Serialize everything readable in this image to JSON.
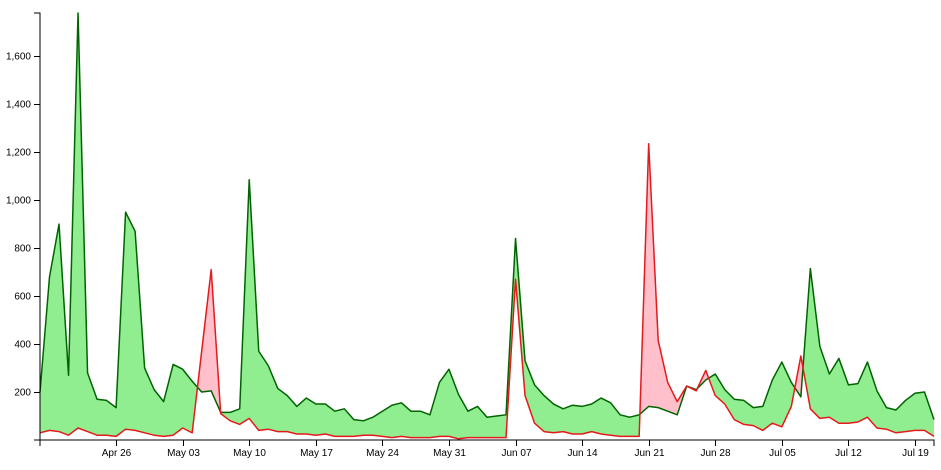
{
  "chart_data": {
    "type": "area",
    "x_start": "2015-04-18",
    "x_interval": "day",
    "ylim": [
      0,
      1780
    ],
    "y_ticks": [
      200,
      400,
      600,
      800,
      1000,
      1200,
      1400,
      1600
    ],
    "y_tick_labels": [
      "200",
      "400",
      "600",
      "800",
      "1,000",
      "1,200",
      "1,400",
      "1,600"
    ],
    "x_tick_labels": [
      "Apr 26",
      "May 03",
      "May 10",
      "May 17",
      "May 24",
      "May 31",
      "Jun 07",
      "Jun 14",
      "Jun 21",
      "Jun 28",
      "Jul 05",
      "Jul 12",
      "Jul 19"
    ],
    "fill_when_green_higher": "#90ee90",
    "fill_when_red_higher": "#ffc0cb",
    "series": [
      {
        "color": "#006400",
        "values": [
          200,
          680,
          900,
          270,
          1780,
          280,
          170,
          165,
          135,
          950,
          870,
          300,
          210,
          160,
          315,
          295,
          245,
          200,
          205,
          115,
          115,
          130,
          1085,
          370,
          310,
          215,
          185,
          140,
          175,
          150,
          150,
          120,
          130,
          85,
          80,
          95,
          120,
          145,
          155,
          120,
          120,
          105,
          240,
          295,
          190,
          120,
          140,
          95,
          100,
          105,
          840,
          330,
          230,
          185,
          150,
          130,
          145,
          140,
          150,
          175,
          155,
          105,
          95,
          105,
          140,
          135,
          120,
          105,
          225,
          210,
          250,
          275,
          210,
          170,
          165,
          135,
          140,
          250,
          325,
          240,
          180,
          715,
          390,
          275,
          340,
          230,
          235,
          325,
          205,
          135,
          125,
          165,
          195,
          200,
          85
        ]
      },
      {
        "color": "#e41a1c",
        "values": [
          30,
          40,
          35,
          20,
          50,
          35,
          20,
          20,
          15,
          45,
          40,
          30,
          20,
          15,
          20,
          50,
          30,
          370,
          710,
          110,
          80,
          65,
          90,
          40,
          45,
          35,
          35,
          25,
          25,
          20,
          25,
          15,
          15,
          15,
          20,
          20,
          15,
          10,
          15,
          10,
          10,
          10,
          15,
          15,
          5,
          10,
          10,
          10,
          10,
          10,
          670,
          185,
          70,
          35,
          30,
          35,
          25,
          25,
          35,
          25,
          20,
          15,
          15,
          15,
          1235,
          415,
          240,
          160,
          225,
          205,
          290,
          185,
          150,
          85,
          65,
          60,
          40,
          70,
          55,
          140,
          350,
          130,
          90,
          95,
          70,
          70,
          75,
          95,
          50,
          45,
          30,
          35,
          40,
          40,
          15
        ]
      }
    ]
  }
}
